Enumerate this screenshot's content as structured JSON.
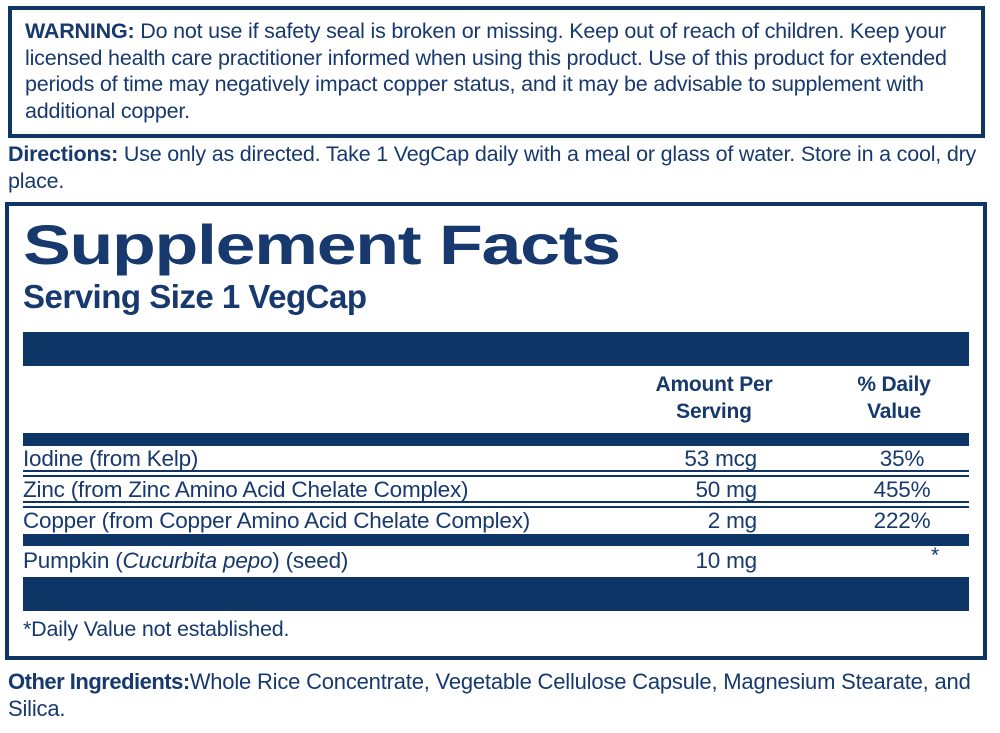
{
  "colors": {
    "navy_bar": "#0d3666",
    "navy_text": "#17396d"
  },
  "warning": {
    "heading": "WARNING:",
    "text": "Do not use if safety seal is broken or missing. Keep out of reach of children. Keep your licensed health care practitioner informed when using this product. Use of this product for extended periods of time may negatively impact copper status, and it may be advisable to supplement with additional copper."
  },
  "directions": {
    "heading": "Directions:",
    "text": "Use only as directed. Take 1 VegCap daily with a meal or glass of water. Store in a cool, dry place."
  },
  "supplement_facts": {
    "title": "Supplement Facts",
    "serving_size": "Serving Size 1 VegCap",
    "columns": {
      "amount": "Amount Per\nServing",
      "daily_value": "% Daily\nValue"
    },
    "rows": [
      {
        "name": "Iodine (from Kelp)",
        "amount": "53 mcg",
        "dv": "35%"
      },
      {
        "name": "Zinc (from Zinc Amino Acid Chelate Complex)",
        "amount": "50 mg",
        "dv": "455%"
      },
      {
        "name": "Copper (from Copper Amino Acid Chelate Complex)",
        "amount": "2 mg",
        "dv": "222%"
      }
    ],
    "botanical_row": {
      "name_prefix": "Pumpkin (",
      "name_italic": "Cucurbita pepo",
      "name_suffix": ") (seed)",
      "amount": "10 mg",
      "dv": "*"
    },
    "footnote": "*Daily Value not established."
  },
  "other_ingredients": {
    "heading": "Other Ingredients:",
    "text": "Whole Rice Concentrate, Vegetable Cellulose Capsule, Magnesium Stearate, and Silica."
  }
}
